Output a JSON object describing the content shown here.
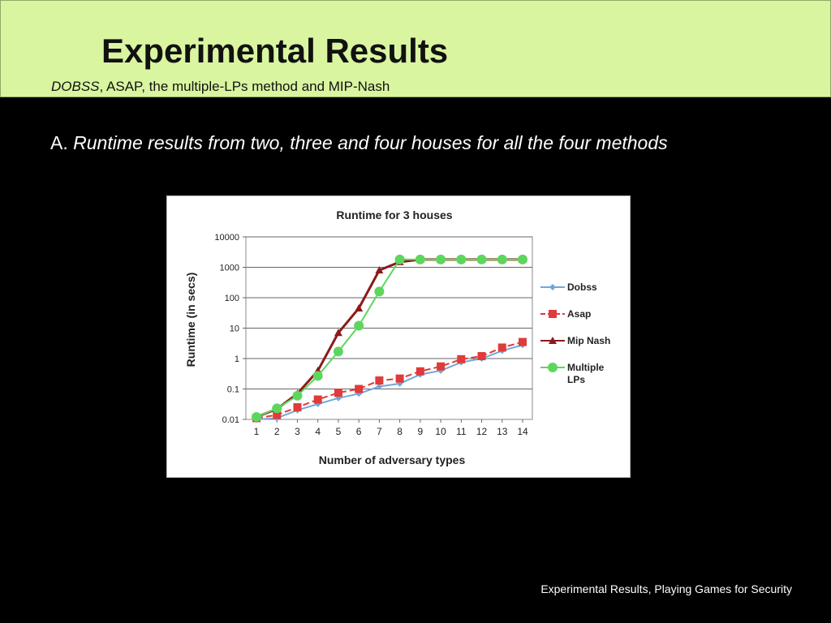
{
  "slide": {
    "title": "Experimental Results",
    "subtitle_em": "DOBSS",
    "subtitle_rest": ", ASAP, the multiple-LPs method and MIP-Nash",
    "heading_prefix": "A. ",
    "heading_em": "Runtime results from two, three and four houses for all the four methods",
    "footer": "Experimental Results, Playing Games for Security"
  },
  "colors": {
    "header_bg": "#d9f5a0",
    "dobss": "#6fa8dc",
    "asap": "#e03a3a",
    "mipnash": "#8b1a1a",
    "multiple": "#5dd65d"
  },
  "chart_data": {
    "type": "line",
    "title": "Runtime for 3 houses",
    "xlabel": "Number of adversary types",
    "ylabel": "Runtime (in secs)",
    "y_scale": "log",
    "ylim": [
      0.01,
      10000
    ],
    "y_ticks": [
      "0.01",
      "0.1",
      "1",
      "10",
      "100",
      "1000",
      "10000"
    ],
    "x": [
      1,
      2,
      3,
      4,
      5,
      6,
      7,
      8,
      9,
      10,
      11,
      12,
      13,
      14
    ],
    "grid": "horizontal",
    "legend_position": "right",
    "series": [
      {
        "name": "Dobss",
        "color": "#6fa8dc",
        "marker": "diamond",
        "values": [
          0.01,
          0.011,
          0.02,
          0.032,
          0.05,
          0.07,
          0.12,
          0.15,
          0.3,
          0.4,
          0.75,
          1.0,
          1.8,
          2.8
        ]
      },
      {
        "name": "Asap",
        "color": "#e03a3a",
        "marker": "square",
        "dashed": true,
        "values": [
          0.011,
          0.014,
          0.025,
          0.045,
          0.075,
          0.1,
          0.19,
          0.22,
          0.38,
          0.55,
          0.95,
          1.2,
          2.3,
          3.5
        ]
      },
      {
        "name": "Mip Nash",
        "color": "#8b1a1a",
        "marker": "triangle",
        "values": [
          0.012,
          0.022,
          0.07,
          0.4,
          7,
          45,
          800,
          1500,
          1800,
          1800,
          1800,
          1800,
          1800,
          1800
        ]
      },
      {
        "name": "Multiple LPs",
        "color": "#5dd65d",
        "marker": "circle",
        "values": [
          0.012,
          0.023,
          0.06,
          0.27,
          1.7,
          12,
          160,
          1800,
          1800,
          1800,
          1800,
          1800,
          1800,
          1800
        ]
      }
    ]
  }
}
